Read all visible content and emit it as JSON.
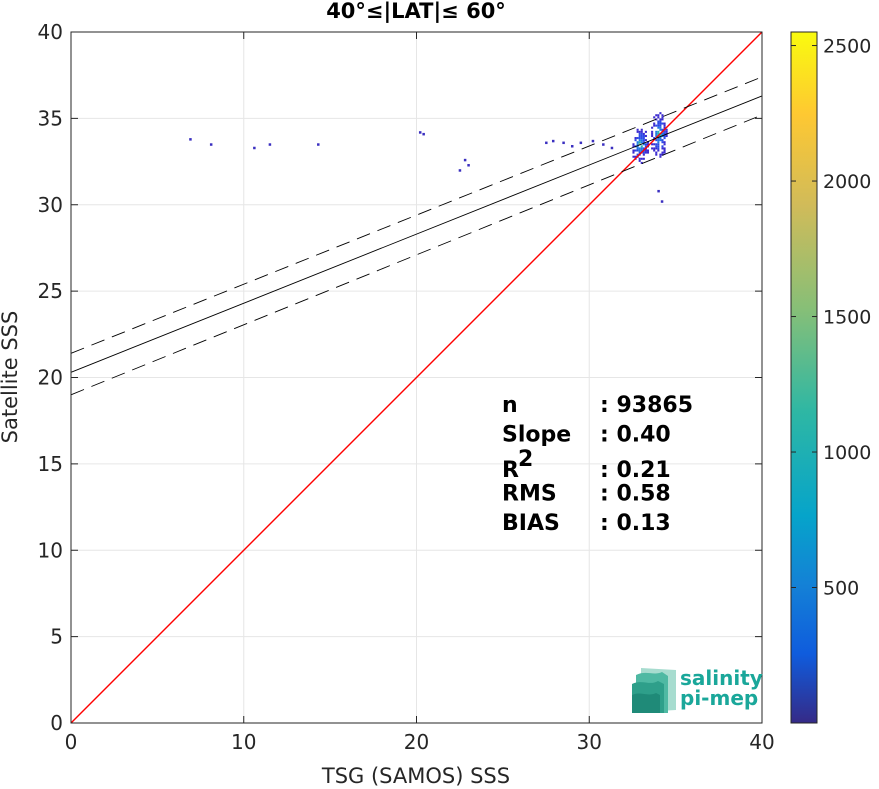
{
  "chart_data": {
    "type": "scatter",
    "title": "40°≤|LAT|≤ 60°",
    "xlabel": "TSG (SAMOS) SSS",
    "ylabel": "Satellite SSS",
    "xlim": [
      0,
      40
    ],
    "ylim": [
      0,
      40
    ],
    "xticks": [
      "0",
      "10",
      "20",
      "30",
      "40"
    ],
    "yticks": [
      "0",
      "5",
      "10",
      "15",
      "20",
      "25",
      "30",
      "35",
      "40"
    ],
    "grid": true,
    "colormap": "parula",
    "colorbar": {
      "range": [
        0,
        2550
      ],
      "ticks": [
        "500",
        "1000",
        "1500",
        "2000",
        "2500"
      ]
    },
    "density_cluster": {
      "x_range": [
        32.5,
        35.0
      ],
      "y_range": [
        32.0,
        35.5
      ]
    },
    "scatter_points": [
      {
        "x": 6.9,
        "y": 33.8
      },
      {
        "x": 8.1,
        "y": 33.5
      },
      {
        "x": 10.6,
        "y": 33.3
      },
      {
        "x": 11.5,
        "y": 33.5
      },
      {
        "x": 14.3,
        "y": 33.5
      },
      {
        "x": 20.2,
        "y": 34.2
      },
      {
        "x": 20.4,
        "y": 34.1
      },
      {
        "x": 22.8,
        "y": 32.6
      },
      {
        "x": 22.5,
        "y": 32.0
      },
      {
        "x": 23.0,
        "y": 32.3
      },
      {
        "x": 27.5,
        "y": 33.6
      },
      {
        "x": 27.9,
        "y": 33.7
      },
      {
        "x": 28.5,
        "y": 33.6
      },
      {
        "x": 29.0,
        "y": 33.4
      },
      {
        "x": 29.5,
        "y": 33.6
      },
      {
        "x": 30.2,
        "y": 33.7
      },
      {
        "x": 30.8,
        "y": 33.5
      },
      {
        "x": 31.3,
        "y": 33.3
      },
      {
        "x": 34.2,
        "y": 30.2
      },
      {
        "x": 34.0,
        "y": 30.8
      }
    ],
    "lines": [
      {
        "name": "",
        "kind": "one-to-one",
        "color": "#ff0000",
        "style": "solid",
        "x": [
          0,
          40
        ],
        "y": [
          0,
          40
        ]
      },
      {
        "name": "",
        "kind": "regression",
        "color": "#000000",
        "style": "solid",
        "x": [
          0,
          40
        ],
        "y": [
          20.3,
          36.3
        ]
      },
      {
        "name": "",
        "kind": "upper-bound",
        "color": "#000000",
        "style": "dashed",
        "x": [
          0,
          40
        ],
        "y": [
          21.4,
          37.4
        ]
      },
      {
        "name": "",
        "kind": "lower-bound",
        "color": "#000000",
        "style": "dashed",
        "x": [
          0,
          40
        ],
        "y": [
          19.0,
          35.2
        ]
      }
    ],
    "stats": [
      {
        "label": "n",
        "value": ": 93865"
      },
      {
        "label": "Slope",
        "value": ": 0.40"
      },
      {
        "label": "R",
        "sup": "2",
        "value": ": 0.21"
      },
      {
        "label": "RMS",
        "value": ": 0.58"
      },
      {
        "label": "BIAS",
        "value": ": 0.13"
      }
    ]
  },
  "logo": {
    "line1": "salinity",
    "line2": "pi-mep"
  }
}
